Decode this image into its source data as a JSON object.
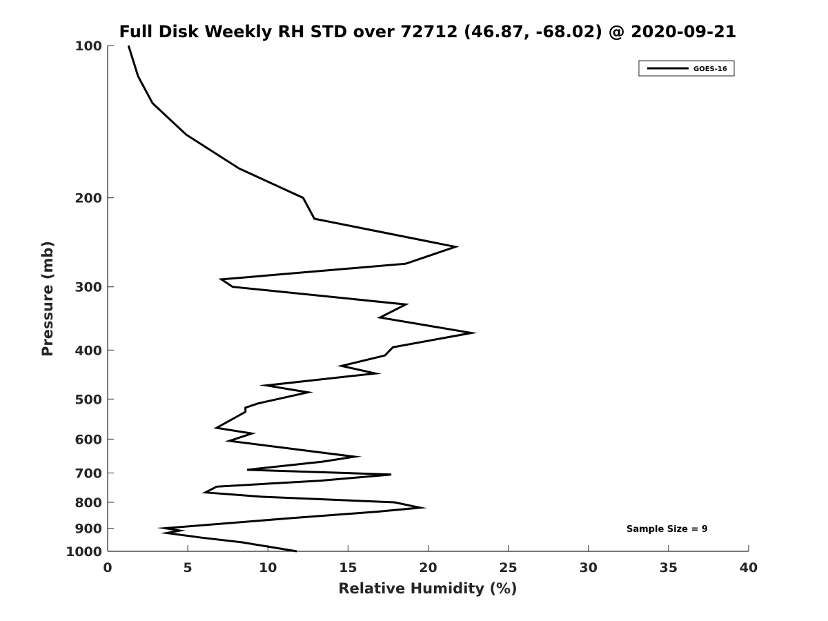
{
  "chart_data": {
    "type": "line",
    "title": "Full Disk Weekly RH STD over 72712 (46.87, -68.02) @ 2020-09-21",
    "xlabel": "Relative Humidity (%)",
    "ylabel": "Pressure (mb)",
    "xlim": [
      0,
      40
    ],
    "ylim": [
      100,
      1000
    ],
    "yscale": "log",
    "y_reversed": true,
    "grid": false,
    "xticks": [
      0,
      5,
      10,
      15,
      20,
      25,
      30,
      35,
      40
    ],
    "xtick_labels": [
      "0",
      "5",
      "10",
      "15",
      "20",
      "25",
      "30",
      "35",
      "40"
    ],
    "yticks": [
      100,
      200,
      300,
      400,
      500,
      600,
      700,
      800,
      900,
      1000
    ],
    "ytick_labels": [
      "100",
      "200",
      "300",
      "400",
      "500",
      "600",
      "700",
      "800",
      "900",
      "1000"
    ],
    "legend_position": "top-right",
    "series": [
      {
        "name": "GOES-16",
        "color": "#000000",
        "x": [
          1.3,
          1.9,
          2.8,
          4.9,
          8.2,
          12.2,
          12.9,
          21.7,
          18.6,
          7.1,
          7.8,
          18.6,
          17.0,
          22.7,
          17.8,
          17.3,
          14.6,
          16.7,
          9.9,
          12.5,
          9.4,
          8.6,
          8.6,
          6.8,
          9.0,
          7.6,
          15.4,
          13.4,
          8.7,
          17.7,
          13.3,
          6.8,
          6.1,
          9.6,
          17.9,
          19.5,
          16.8,
          11.4,
          3.6,
          4.5,
          3.7,
          5.9,
          8.4,
          11.8
        ],
        "y": [
          100,
          115,
          130,
          150,
          175,
          200,
          220,
          250,
          270,
          290,
          300,
          325,
          345,
          370,
          395,
          410,
          430,
          445,
          470,
          485,
          510,
          520,
          530,
          570,
          585,
          605,
          650,
          665,
          690,
          705,
          725,
          745,
          765,
          780,
          800,
          820,
          835,
          860,
          900,
          910,
          920,
          940,
          960,
          1000
        ]
      }
    ],
    "annotations": [
      {
        "text": "Sample Size = 9",
        "position": "bottom-right"
      }
    ]
  }
}
